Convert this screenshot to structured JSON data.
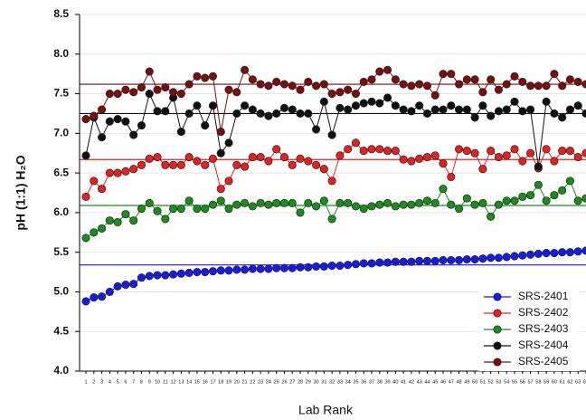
{
  "chart_data": {
    "type": "line",
    "y_label": "pH (1:1) H₂O",
    "x_label": "Lab Rank",
    "x": [
      1,
      2,
      3,
      4,
      5,
      6,
      7,
      8,
      9,
      10,
      11,
      12,
      13,
      14,
      15,
      16,
      17,
      18,
      19,
      20,
      21,
      22,
      23,
      24,
      25,
      26,
      27,
      28,
      29,
      30,
      31,
      32,
      33,
      34,
      35,
      36,
      37,
      38,
      39,
      40,
      41,
      42,
      43,
      44,
      45,
      46,
      47,
      48,
      49,
      50,
      51,
      52,
      53,
      54,
      55,
      56,
      57,
      58,
      59,
      60,
      61,
      62,
      63,
      64
    ],
    "xlim": [
      0.2,
      64
    ],
    "xticks": [
      1,
      2,
      3,
      4,
      5,
      6,
      7,
      8,
      9,
      10,
      11,
      12,
      13,
      14,
      15,
      16,
      17,
      18,
      19,
      20,
      21,
      22,
      23,
      24,
      25,
      26,
      27,
      28,
      29,
      30,
      31,
      32,
      33,
      34,
      35,
      36,
      37,
      38,
      39,
      40,
      41,
      42,
      43,
      44,
      45,
      46,
      47,
      48,
      49,
      50,
      51,
      52,
      53,
      54,
      55,
      56,
      57,
      58,
      59,
      60,
      61,
      62,
      63,
      64
    ],
    "ylim": [
      4.0,
      8.5
    ],
    "yticks": [
      {
        "value": 4.0,
        "label": "4.0"
      },
      {
        "value": 4.5,
        "label": "4.5"
      },
      {
        "value": 5.0,
        "label": "5.0"
      },
      {
        "value": 5.5,
        "label": "5.5"
      },
      {
        "value": 6.0,
        "label": "6.0"
      },
      {
        "value": 6.5,
        "label": "6.5"
      },
      {
        "value": 7.0,
        "label": "7.0"
      },
      {
        "value": 7.5,
        "label": "7.5"
      },
      {
        "value": 8.0,
        "label": "8.0"
      },
      {
        "value": 8.5,
        "label": "8.5"
      }
    ],
    "grid": true,
    "legend": "lower right",
    "series": [
      {
        "name": "SRS-2401",
        "color": "#1a1ae6",
        "reference_line": 5.34,
        "values": [
          4.88,
          4.93,
          4.94,
          5.0,
          5.07,
          5.09,
          5.1,
          5.18,
          5.2,
          5.21,
          5.21,
          5.22,
          5.23,
          5.24,
          5.25,
          5.25,
          5.26,
          5.27,
          5.27,
          5.28,
          5.28,
          5.29,
          5.29,
          5.29,
          5.3,
          5.3,
          5.3,
          5.31,
          5.31,
          5.32,
          5.32,
          5.33,
          5.33,
          5.34,
          5.35,
          5.36,
          5.36,
          5.37,
          5.37,
          5.38,
          5.38,
          5.38,
          5.39,
          5.39,
          5.39,
          5.4,
          5.4,
          5.4,
          5.41,
          5.41,
          5.42,
          5.43,
          5.43,
          5.44,
          5.45,
          5.46,
          5.47,
          5.48,
          5.49,
          5.49,
          5.5,
          5.5,
          5.51,
          5.52
        ]
      },
      {
        "name": "SRS-2402",
        "color": "#e52020",
        "reference_line": 6.67,
        "values": [
          6.2,
          6.4,
          6.3,
          6.5,
          6.5,
          6.52,
          6.55,
          6.6,
          6.68,
          6.7,
          6.6,
          6.6,
          6.6,
          6.7,
          6.65,
          6.6,
          6.68,
          6.3,
          6.4,
          6.6,
          6.58,
          6.7,
          6.7,
          6.65,
          6.8,
          6.7,
          6.6,
          6.68,
          6.65,
          6.6,
          6.55,
          6.4,
          6.72,
          6.8,
          6.88,
          6.78,
          6.8,
          6.8,
          6.78,
          6.78,
          6.67,
          6.65,
          6.68,
          6.7,
          6.72,
          6.62,
          6.45,
          6.8,
          6.78,
          6.75,
          6.55,
          6.78,
          6.7,
          6.72,
          6.8,
          6.65,
          6.75,
          6.56,
          6.8,
          6.65,
          6.78,
          6.78,
          6.7,
          6.75
        ]
      },
      {
        "name": "SRS-2403",
        "color": "#1c8c1c",
        "reference_line": 6.09,
        "values": [
          5.68,
          5.75,
          5.8,
          5.9,
          5.88,
          5.98,
          5.9,
          6.05,
          6.12,
          6.02,
          5.92,
          6.05,
          6.05,
          6.15,
          6.05,
          6.05,
          6.1,
          6.15,
          6.05,
          6.1,
          6.12,
          6.08,
          6.12,
          6.1,
          6.12,
          6.12,
          6.12,
          6.0,
          6.12,
          6.08,
          6.15,
          5.92,
          6.12,
          6.12,
          6.08,
          6.05,
          6.08,
          6.1,
          6.12,
          6.08,
          6.1,
          6.1,
          6.12,
          6.15,
          6.12,
          6.3,
          6.1,
          6.05,
          6.18,
          6.1,
          6.12,
          5.95,
          6.1,
          6.15,
          6.15,
          6.2,
          6.22,
          6.35,
          6.15,
          6.22,
          6.28,
          6.4,
          6.15,
          6.18
        ]
      },
      {
        "name": "SRS-2404",
        "color": "#111111",
        "reference_line": 7.25,
        "values": [
          6.72,
          7.2,
          6.95,
          7.15,
          7.18,
          7.15,
          6.98,
          7.1,
          7.5,
          7.28,
          7.28,
          7.45,
          7.02,
          7.25,
          7.35,
          7.1,
          7.35,
          6.75,
          6.88,
          7.25,
          7.35,
          7.3,
          7.25,
          7.22,
          7.25,
          7.32,
          7.3,
          7.25,
          7.25,
          7.05,
          7.4,
          6.98,
          7.32,
          7.3,
          7.35,
          7.38,
          7.4,
          7.38,
          7.45,
          7.35,
          7.3,
          7.28,
          7.35,
          7.25,
          7.3,
          7.3,
          7.35,
          7.3,
          7.3,
          7.2,
          7.35,
          7.22,
          7.28,
          7.3,
          7.4,
          7.28,
          7.3,
          6.58,
          7.4,
          7.25,
          7.2,
          7.3,
          7.35,
          7.25
        ]
      },
      {
        "name": "SRS-2405",
        "color": "#7a0e0e",
        "reference_line": 7.62,
        "values": [
          7.18,
          7.22,
          7.3,
          7.5,
          7.5,
          7.55,
          7.52,
          7.58,
          7.78,
          7.55,
          7.58,
          7.52,
          7.5,
          7.62,
          7.72,
          7.7,
          7.72,
          7.02,
          7.55,
          7.52,
          7.8,
          7.68,
          7.62,
          7.6,
          7.65,
          7.62,
          7.6,
          7.55,
          7.65,
          7.6,
          7.62,
          7.5,
          7.52,
          7.55,
          7.5,
          7.65,
          7.68,
          7.78,
          7.8,
          7.68,
          7.62,
          7.6,
          7.62,
          7.6,
          7.48,
          7.75,
          7.75,
          7.62,
          7.68,
          7.68,
          7.52,
          7.68,
          7.55,
          7.62,
          7.72,
          7.65,
          7.6,
          7.6,
          7.6,
          7.75,
          7.6,
          7.68,
          7.65,
          7.62
        ]
      }
    ]
  }
}
